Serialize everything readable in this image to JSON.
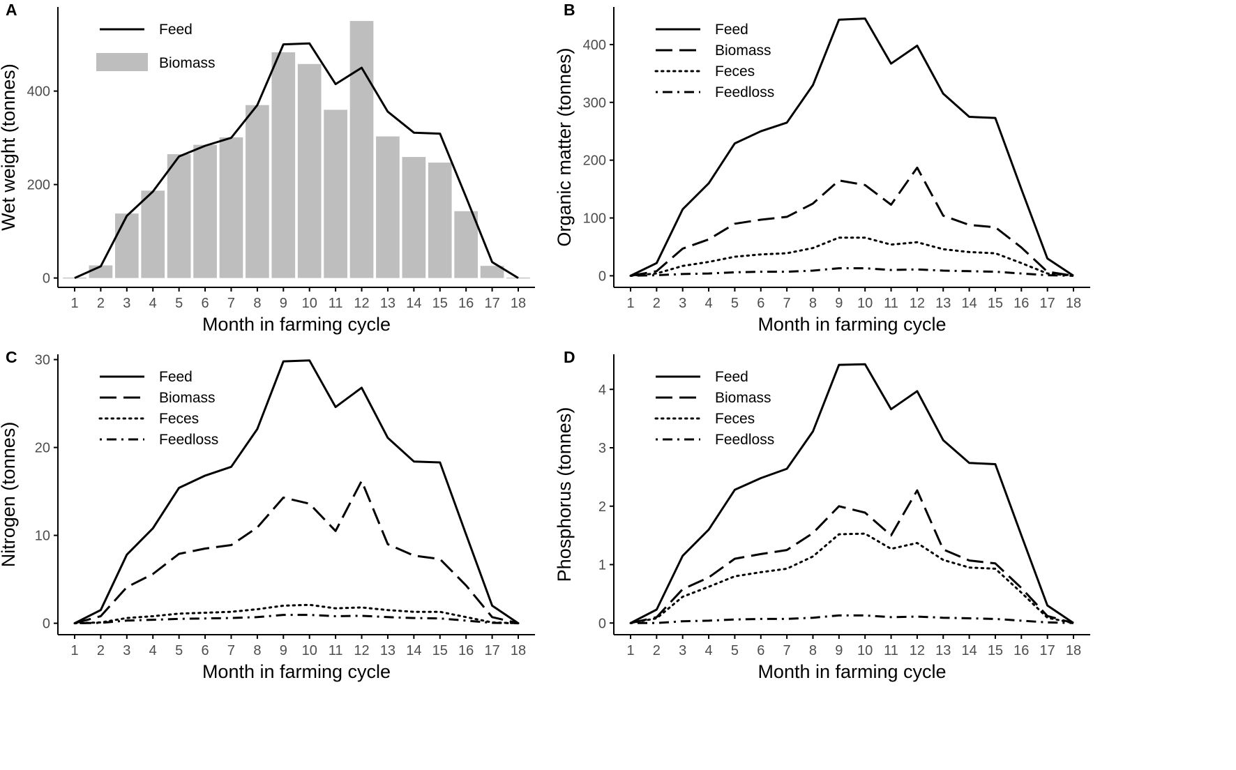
{
  "chart_data": [
    {
      "panel": "A",
      "type": "bar+line",
      "xlabel": "Month in farming cycle",
      "ylabel": "Wet weight (tonnes)",
      "categories": [
        1,
        2,
        3,
        4,
        5,
        6,
        7,
        8,
        9,
        10,
        11,
        12,
        13,
        14,
        15,
        16,
        17,
        18
      ],
      "ylim": [
        -20,
        580
      ],
      "yticks": [
        0,
        200,
        400
      ],
      "series": [
        {
          "name": "Feed",
          "kind": "line",
          "dash": "solid",
          "values": [
            0,
            25,
            133,
            185,
            260,
            283,
            300,
            370,
            500,
            502,
            415,
            450,
            356,
            311,
            309,
            173,
            34,
            0
          ]
        },
        {
          "name": "Biomass",
          "kind": "bar",
          "values": [
            0,
            27,
            138,
            187,
            265,
            285,
            301,
            370,
            483,
            458,
            360,
            550,
            303,
            259,
            247,
            143,
            26,
            0
          ]
        }
      ],
      "legend": [
        "Feed",
        "Biomass"
      ],
      "legend_position": "top-left"
    },
    {
      "panel": "B",
      "type": "line",
      "xlabel": "Month in farming cycle",
      "ylabel": "Organic matter (tonnes)",
      "categories": [
        1,
        2,
        3,
        4,
        5,
        6,
        7,
        8,
        9,
        10,
        11,
        12,
        13,
        14,
        15,
        16,
        17,
        18
      ],
      "ylim": [
        -20,
        465
      ],
      "yticks": [
        0,
        100,
        200,
        300,
        400
      ],
      "series": [
        {
          "name": "Feed",
          "dash": "solid",
          "values": [
            0,
            22,
            115,
            160,
            229,
            250,
            265,
            330,
            443,
            445,
            367,
            398,
            315,
            275,
            273,
            150,
            30,
            0
          ]
        },
        {
          "name": "Biomass",
          "dash": "long-dash",
          "values": [
            0,
            8,
            47,
            63,
            90,
            97,
            102,
            125,
            165,
            157,
            123,
            187,
            104,
            88,
            84,
            49,
            7,
            0
          ]
        },
        {
          "name": "Feces",
          "dash": "dotted",
          "values": [
            0,
            4,
            17,
            24,
            33,
            37,
            39,
            48,
            66,
            66,
            54,
            58,
            46,
            41,
            39,
            22,
            4,
            0
          ]
        },
        {
          "name": "Feedloss",
          "dash": "dot-dash",
          "values": [
            0,
            1,
            3,
            4,
            6,
            7,
            7,
            9,
            13,
            13,
            10,
            11,
            9,
            8,
            7,
            4,
            1,
            0
          ]
        }
      ],
      "legend": [
        "Feed",
        "Biomass",
        "Feces",
        "Feedloss"
      ],
      "legend_position": "top-left"
    },
    {
      "panel": "C",
      "type": "line",
      "xlabel": "Month in farming cycle",
      "ylabel": "Nitrogen (tonnes)",
      "categories": [
        1,
        2,
        3,
        4,
        5,
        6,
        7,
        8,
        9,
        10,
        11,
        12,
        13,
        14,
        15,
        16,
        17,
        18
      ],
      "ylim": [
        -1.3,
        30.6
      ],
      "yticks": [
        0,
        10,
        20,
        30
      ],
      "series": [
        {
          "name": "Feed",
          "dash": "solid",
          "values": [
            0,
            1.5,
            7.8,
            10.8,
            15.4,
            16.8,
            17.8,
            22.1,
            29.8,
            29.9,
            24.6,
            26.8,
            21.1,
            18.4,
            18.3,
            10.1,
            2.0,
            0
          ]
        },
        {
          "name": "Biomass",
          "dash": "long-dash",
          "values": [
            0,
            0.8,
            4.1,
            5.6,
            7.9,
            8.5,
            8.9,
            10.9,
            14.3,
            13.6,
            10.5,
            16.2,
            9.0,
            7.7,
            7.3,
            4.3,
            0.7,
            0
          ]
        },
        {
          "name": "Feces",
          "dash": "dotted",
          "values": [
            0,
            0.1,
            0.6,
            0.8,
            1.1,
            1.2,
            1.3,
            1.6,
            2.0,
            2.1,
            1.7,
            1.8,
            1.5,
            1.3,
            1.3,
            0.7,
            0.1,
            0
          ]
        },
        {
          "name": "Feedloss",
          "dash": "dot-dash",
          "values": [
            0,
            0.05,
            0.3,
            0.4,
            0.5,
            0.55,
            0.6,
            0.7,
            0.95,
            0.95,
            0.8,
            0.85,
            0.7,
            0.6,
            0.55,
            0.3,
            0.05,
            0
          ]
        }
      ],
      "legend": [
        "Feed",
        "Biomass",
        "Feces",
        "Feedloss"
      ],
      "legend_position": "top-left"
    },
    {
      "panel": "D",
      "type": "line",
      "xlabel": "Month in farming cycle",
      "ylabel": "Phosphorus (tonnes)",
      "categories": [
        1,
        2,
        3,
        4,
        5,
        6,
        7,
        8,
        9,
        10,
        11,
        12,
        13,
        14,
        15,
        16,
        17,
        18
      ],
      "ylim": [
        -0.2,
        4.6
      ],
      "yticks": [
        0,
        1,
        2,
        3,
        4
      ],
      "series": [
        {
          "name": "Feed",
          "dash": "solid",
          "values": [
            0,
            0.23,
            1.15,
            1.6,
            2.28,
            2.48,
            2.64,
            3.28,
            4.42,
            4.43,
            3.66,
            3.97,
            3.13,
            2.74,
            2.72,
            1.5,
            0.3,
            0
          ]
        },
        {
          "name": "Biomass",
          "dash": "long-dash",
          "values": [
            0,
            0.1,
            0.58,
            0.78,
            1.1,
            1.18,
            1.25,
            1.54,
            2.0,
            1.89,
            1.5,
            2.27,
            1.26,
            1.07,
            1.02,
            0.6,
            0.12,
            0
          ]
        },
        {
          "name": "Feces",
          "dash": "dotted",
          "values": [
            0,
            0.08,
            0.45,
            0.62,
            0.8,
            0.87,
            0.93,
            1.14,
            1.52,
            1.53,
            1.27,
            1.37,
            1.08,
            0.95,
            0.93,
            0.52,
            0.09,
            0
          ]
        },
        {
          "name": "Feedloss",
          "dash": "dot-dash",
          "values": [
            0,
            0.0,
            0.03,
            0.04,
            0.06,
            0.07,
            0.07,
            0.09,
            0.13,
            0.13,
            0.1,
            0.11,
            0.09,
            0.08,
            0.07,
            0.04,
            0.01,
            0
          ]
        }
      ],
      "legend": [
        "Feed",
        "Biomass",
        "Feces",
        "Feedloss"
      ],
      "legend_position": "top-left"
    }
  ],
  "colors": {
    "line": "#000000",
    "bar": "#bebebe",
    "axis": "#000000",
    "tick_label": "#4d4d4d"
  }
}
